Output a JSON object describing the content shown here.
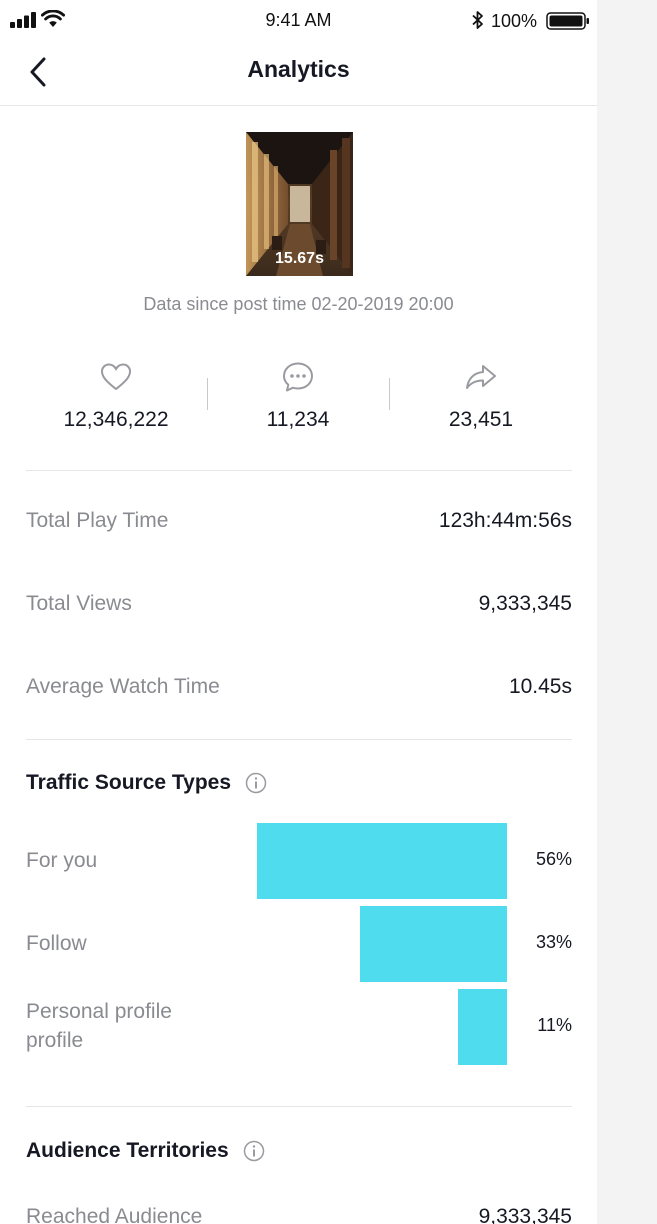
{
  "status_bar": {
    "time": "9:41 AM",
    "battery": "100%"
  },
  "header": {
    "title": "Analytics"
  },
  "video": {
    "duration": "15.67s",
    "data_since": "Data since post time 02-20-2019 20:00"
  },
  "engagement": {
    "likes": "12,346,222",
    "comments": "11,234",
    "shares": "23,451"
  },
  "metrics": [
    {
      "label": "Total Play Time",
      "value": "123h:44m:56s"
    },
    {
      "label": "Total Views",
      "value": "9,333,345"
    },
    {
      "label": "Average Watch Time",
      "value": "10.45s"
    }
  ],
  "traffic": {
    "title": "Traffic Source Types",
    "accent_color": "#4fdcef",
    "items": [
      {
        "label": "For you",
        "percent_text": "56%",
        "percent": 56
      },
      {
        "label": "Follow",
        "percent_text": "33%",
        "percent": 33
      },
      {
        "label": "Personal profile profile",
        "percent_text": "11%",
        "percent": 11
      }
    ]
  },
  "audience": {
    "title": "Audience Territories",
    "reached_label": "Reached Audience",
    "reached_value": "9,333,345"
  },
  "icons": {
    "likes": "heart-icon",
    "comments": "comment-icon",
    "shares": "share-icon",
    "back": "chevron-left-icon",
    "info": "info-icon"
  }
}
